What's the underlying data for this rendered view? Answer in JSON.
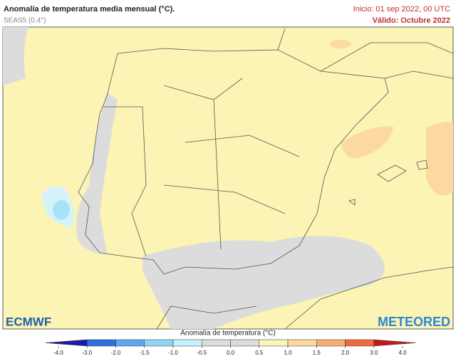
{
  "header": {
    "title": "Anomalía de temperatura media mensual (°C).",
    "subtitle": "SEAS5 (0.4°)",
    "init": "Inicio: 01 sep 2022, 00 UTC",
    "valid": "Válido: Octubre 2022"
  },
  "logos": {
    "left": "ECMWF",
    "right": "METEORED"
  },
  "colorbar": {
    "label": "Anomalía de temperatura (°C)",
    "lim": [
      -4,
      4
    ],
    "ticks": [
      {
        "value": -4,
        "label": "-4.0"
      },
      {
        "value": -3,
        "label": "-3.0"
      },
      {
        "value": -2,
        "label": "-2.0"
      },
      {
        "value": -1.5,
        "label": "-1.5"
      },
      {
        "value": -1,
        "label": "-1.0"
      },
      {
        "value": -0.5,
        "label": "-0.5"
      },
      {
        "value": 0,
        "label": "0.0"
      },
      {
        "value": 0.5,
        "label": "0.5"
      },
      {
        "value": 1,
        "label": "1.0"
      },
      {
        "value": 1.5,
        "label": "1.5"
      },
      {
        "value": 2,
        "label": "2.0"
      },
      {
        "value": 3,
        "label": "3.0"
      },
      {
        "value": 4,
        "label": "4.0"
      }
    ],
    "colors": [
      "#1a1aa8",
      "#2f6ee0",
      "#5ea8f0",
      "#8fd3f7",
      "#c6f0fb",
      "#dcdcdc",
      "#dcdcdc",
      "#fbf4b4",
      "#fbd9a0",
      "#f7b070",
      "#ef6a3d",
      "#c0181b"
    ]
  }
}
